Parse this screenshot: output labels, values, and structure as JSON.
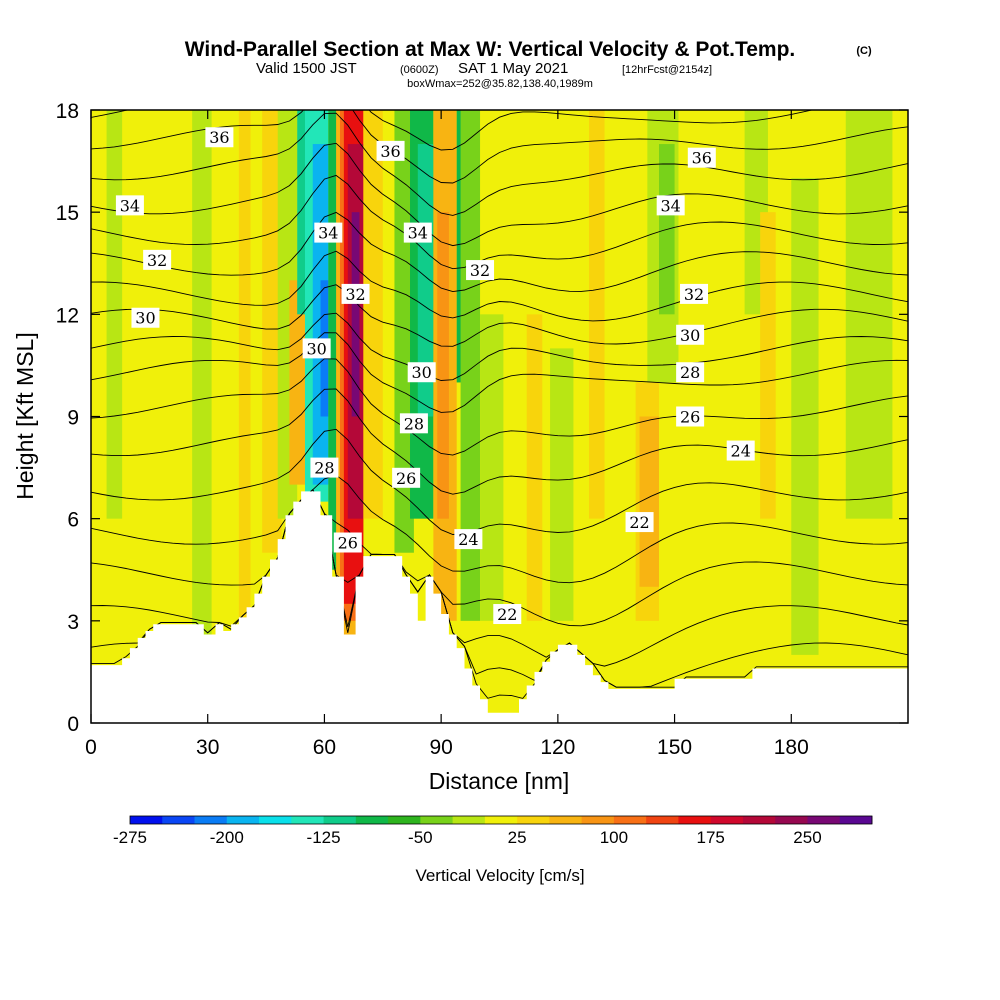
{
  "title": {
    "main": "Wind-Parallel Section at Max W: Vertical Velocity & Pot.Temp.",
    "copyright": "(C)",
    "valid_prefix": "Valid 1500 JST",
    "valid_utc": "(0600Z)",
    "valid_date": "SAT 1 May 2021",
    "forecast": "[12hrFcst@2154z]",
    "box": "boxWmax=252@35.82,138.40,1989m"
  },
  "chart_data": {
    "type": "heatmap",
    "xlabel": "Distance [nm]",
    "ylabel": "Height [Kft MSL]",
    "xlim": [
      0,
      210
    ],
    "ylim": [
      0,
      18
    ],
    "x_ticks": [
      {
        "value": 0,
        "label": "0"
      },
      {
        "value": 30,
        "label": "30"
      },
      {
        "value": 60,
        "label": "60"
      },
      {
        "value": 90,
        "label": "90"
      },
      {
        "value": 120,
        "label": "120"
      },
      {
        "value": 150,
        "label": "150"
      },
      {
        "value": 180,
        "label": "180"
      }
    ],
    "y_ticks": [
      {
        "value": 0,
        "label": "0"
      },
      {
        "value": 3,
        "label": "3"
      },
      {
        "value": 6,
        "label": "6"
      },
      {
        "value": 9,
        "label": "9"
      },
      {
        "value": 12,
        "label": "12"
      },
      {
        "value": 15,
        "label": "15"
      },
      {
        "value": 18,
        "label": "18"
      }
    ],
    "colorbar": {
      "label": "Vertical Velocity [cm/s]",
      "colors": [
        "#0010ee",
        "#0a46f5",
        "#0a7cf5",
        "#0ab4f0",
        "#0ae0ea",
        "#22e6b8",
        "#10cc8a",
        "#10b848",
        "#2eb41e",
        "#78d21a",
        "#b8e614",
        "#f0f00a",
        "#f8d40c",
        "#f8b412",
        "#f89414",
        "#f87016",
        "#f04412",
        "#e81010",
        "#d0082c",
        "#b40838",
        "#960850",
        "#780874",
        "#5a0892"
      ],
      "tick_labels": [
        "-275",
        "-200",
        "-125",
        "-50",
        "25",
        "100",
        "175",
        "250"
      ],
      "tick_bins": [
        0,
        3,
        6,
        9,
        12,
        15,
        18,
        21
      ]
    },
    "velocity_bands": [
      {
        "x": 4,
        "w": 4,
        "color": "#b8e614",
        "y0": 6,
        "y1": 18
      },
      {
        "x": 26,
        "w": 5,
        "color": "#b8e614",
        "y0": 2.5,
        "y1": 18
      },
      {
        "x": 38,
        "w": 3,
        "color": "#f8d40c",
        "y0": 3,
        "y1": 18
      },
      {
        "x": 44,
        "w": 5,
        "color": "#f8d40c",
        "y0": 5,
        "y1": 18
      },
      {
        "x": 48,
        "w": 5,
        "color": "#b8e614",
        "y0": 6,
        "y1": 18
      },
      {
        "x": 51,
        "w": 4,
        "color": "#f8b412",
        "y0": 7,
        "y1": 13
      },
      {
        "x": 53,
        "w": 6,
        "color": "#10cc8a",
        "y0": 12,
        "y1": 18
      },
      {
        "x": 55,
        "w": 6,
        "color": "#22e6b8",
        "y0": 6.5,
        "y1": 18
      },
      {
        "x": 57,
        "w": 4,
        "color": "#0ab4f0",
        "y0": 7,
        "y1": 17
      },
      {
        "x": 59,
        "w": 2,
        "color": "#0a7cf5",
        "y0": 9,
        "y1": 13
      },
      {
        "x": 61,
        "w": 4,
        "color": "#10b848",
        "y0": 4.5,
        "y1": 18
      },
      {
        "x": 63,
        "w": 7,
        "color": "#f8b412",
        "y0": 2.5,
        "y1": 18
      },
      {
        "x": 64,
        "w": 6,
        "color": "#f87016",
        "y0": 3,
        "y1": 18
      },
      {
        "x": 65,
        "w": 5,
        "color": "#e81010",
        "y0": 3.5,
        "y1": 18
      },
      {
        "x": 66,
        "w": 4,
        "color": "#b40838",
        "y0": 6,
        "y1": 17
      },
      {
        "x": 67,
        "w": 2,
        "color": "#780874",
        "y0": 9,
        "y1": 15
      },
      {
        "x": 70,
        "w": 5,
        "color": "#f8d40c",
        "y0": 6,
        "y1": 18
      },
      {
        "x": 78,
        "w": 5,
        "color": "#78d21a",
        "y0": 5,
        "y1": 18
      },
      {
        "x": 82,
        "w": 6,
        "color": "#10b848",
        "y0": 6,
        "y1": 18
      },
      {
        "x": 84,
        "w": 4,
        "color": "#10cc8a",
        "y0": 9,
        "y1": 17
      },
      {
        "x": 88,
        "w": 6,
        "color": "#f8b412",
        "y0": 3,
        "y1": 18
      },
      {
        "x": 89,
        "w": 3,
        "color": "#f89414",
        "y0": 6,
        "y1": 15
      },
      {
        "x": 94,
        "w": 5,
        "color": "#10b848",
        "y0": 10,
        "y1": 18
      },
      {
        "x": 95,
        "w": 5,
        "color": "#78d21a",
        "y0": 3,
        "y1": 18
      },
      {
        "x": 100,
        "w": 6,
        "color": "#b8e614",
        "y0": 3,
        "y1": 12
      },
      {
        "x": 112,
        "w": 4,
        "color": "#f8d40c",
        "y0": 3,
        "y1": 12
      },
      {
        "x": 118,
        "w": 6,
        "color": "#b8e614",
        "y0": 3,
        "y1": 11
      },
      {
        "x": 128,
        "w": 4,
        "color": "#f8d40c",
        "y0": 6,
        "y1": 18
      },
      {
        "x": 140,
        "w": 6,
        "color": "#f8d40c",
        "y0": 3,
        "y1": 10
      },
      {
        "x": 141,
        "w": 5,
        "color": "#f8b412",
        "y0": 4,
        "y1": 9
      },
      {
        "x": 143,
        "w": 8,
        "color": "#b8e614",
        "y0": 10,
        "y1": 18
      },
      {
        "x": 146,
        "w": 4,
        "color": "#78d21a",
        "y0": 12,
        "y1": 17
      },
      {
        "x": 168,
        "w": 6,
        "color": "#b8e614",
        "y0": 12,
        "y1": 18
      },
      {
        "x": 172,
        "w": 4,
        "color": "#f8d40c",
        "y0": 6,
        "y1": 15
      },
      {
        "x": 180,
        "w": 7,
        "color": "#b8e614",
        "y0": 2,
        "y1": 16
      },
      {
        "x": 194,
        "w": 12,
        "color": "#b8e614",
        "y0": 6,
        "y1": 18
      }
    ],
    "terrain": [
      [
        0,
        1.7
      ],
      [
        8,
        1.7
      ],
      [
        8,
        1.9
      ],
      [
        10,
        1.9
      ],
      [
        10,
        2.2
      ],
      [
        12,
        2.2
      ],
      [
        12,
        2.5
      ],
      [
        14,
        2.5
      ],
      [
        14,
        2.7
      ],
      [
        16,
        2.7
      ],
      [
        16,
        2.9
      ],
      [
        29,
        2.9
      ],
      [
        29,
        2.6
      ],
      [
        32,
        2.6
      ],
      [
        32,
        2.9
      ],
      [
        34,
        2.9
      ],
      [
        34,
        2.7
      ],
      [
        36,
        2.7
      ],
      [
        36,
        2.9
      ],
      [
        38,
        2.9
      ],
      [
        38,
        3.1
      ],
      [
        40,
        3.1
      ],
      [
        40,
        3.4
      ],
      [
        42,
        3.4
      ],
      [
        42,
        3.8
      ],
      [
        44,
        3.8
      ],
      [
        44,
        4.3
      ],
      [
        46,
        4.3
      ],
      [
        46,
        4.8
      ],
      [
        48,
        4.8
      ],
      [
        48,
        5.4
      ],
      [
        50,
        5.4
      ],
      [
        50,
        6.1
      ],
      [
        52,
        6.1
      ],
      [
        52,
        6.5
      ],
      [
        54,
        6.5
      ],
      [
        54,
        6.8
      ],
      [
        59,
        6.8
      ],
      [
        59,
        6.1
      ],
      [
        62,
        6.1
      ],
      [
        62,
        4.3
      ],
      [
        65,
        4.3
      ],
      [
        65,
        2.6
      ],
      [
        68,
        2.6
      ],
      [
        68,
        4.3
      ],
      [
        70,
        4.3
      ],
      [
        70,
        4.9
      ],
      [
        80,
        4.9
      ],
      [
        80,
        4.3
      ],
      [
        82,
        4.3
      ],
      [
        82,
        3.8
      ],
      [
        84,
        3.8
      ],
      [
        84,
        3.0
      ],
      [
        86,
        3.0
      ],
      [
        86,
        4.3
      ],
      [
        88,
        4.3
      ],
      [
        88,
        3.8
      ],
      [
        90,
        3.8
      ],
      [
        90,
        3.2
      ],
      [
        92,
        3.2
      ],
      [
        92,
        2.6
      ],
      [
        94,
        2.6
      ],
      [
        94,
        2.2
      ],
      [
        96,
        2.2
      ],
      [
        96,
        1.6
      ],
      [
        98,
        1.6
      ],
      [
        98,
        1.1
      ],
      [
        100,
        1.1
      ],
      [
        100,
        0.7
      ],
      [
        102,
        0.7
      ],
      [
        102,
        0.3
      ],
      [
        110,
        0.3
      ],
      [
        110,
        0.7
      ],
      [
        112,
        0.7
      ],
      [
        112,
        1.1
      ],
      [
        114,
        1.1
      ],
      [
        114,
        1.5
      ],
      [
        116,
        1.5
      ],
      [
        116,
        1.8
      ],
      [
        118,
        1.8
      ],
      [
        118,
        2.1
      ],
      [
        120,
        2.1
      ],
      [
        120,
        2.3
      ],
      [
        125,
        2.3
      ],
      [
        125,
        2.0
      ],
      [
        127,
        2.0
      ],
      [
        127,
        1.7
      ],
      [
        129,
        1.7
      ],
      [
        129,
        1.4
      ],
      [
        131,
        1.4
      ],
      [
        131,
        1.2
      ],
      [
        133,
        1.2
      ],
      [
        133,
        1.0
      ],
      [
        140,
        1.0
      ],
      [
        140,
        1.0
      ],
      [
        150,
        1.0
      ],
      [
        150,
        1.3
      ],
      [
        170,
        1.3
      ],
      [
        170,
        1.6
      ],
      [
        210,
        1.6
      ]
    ],
    "theta_contours": {
      "levels": [
        20,
        21,
        22,
        23,
        24,
        25,
        26,
        27,
        28,
        29,
        30,
        31,
        32,
        33,
        34,
        35,
        36,
        37
      ],
      "base_heights": [
        1.2,
        2.0,
        3.1,
        4.4,
        5.6,
        6.9,
        8.2,
        9.3,
        10.3,
        11.0,
        11.8,
        12.6,
        13.5,
        14.4,
        15.3,
        16.3,
        17.2,
        18.0
      ]
    },
    "contour_labels": [
      {
        "text": "36",
        "x": 33,
        "y": 17.2
      },
      {
        "text": "36",
        "x": 77,
        "y": 16.8
      },
      {
        "text": "36",
        "x": 157,
        "y": 16.6
      },
      {
        "text": "34",
        "x": 10,
        "y": 15.2
      },
      {
        "text": "34",
        "x": 61,
        "y": 14.4
      },
      {
        "text": "34",
        "x": 84,
        "y": 14.4
      },
      {
        "text": "34",
        "x": 149,
        "y": 15.2
      },
      {
        "text": "32",
        "x": 17,
        "y": 13.6
      },
      {
        "text": "32",
        "x": 68,
        "y": 12.6
      },
      {
        "text": "32",
        "x": 100,
        "y": 13.3
      },
      {
        "text": "32",
        "x": 155,
        "y": 12.6
      },
      {
        "text": "30",
        "x": 14,
        "y": 11.9
      },
      {
        "text": "30",
        "x": 58,
        "y": 11.0
      },
      {
        "text": "30",
        "x": 85,
        "y": 10.3
      },
      {
        "text": "30",
        "x": 154,
        "y": 11.4
      },
      {
        "text": "28",
        "x": 60,
        "y": 7.5
      },
      {
        "text": "28",
        "x": 83,
        "y": 8.8
      },
      {
        "text": "28",
        "x": 154,
        "y": 10.3
      },
      {
        "text": "26",
        "x": 81,
        "y": 7.2
      },
      {
        "text": "26",
        "x": 66,
        "y": 5.3
      },
      {
        "text": "26",
        "x": 154,
        "y": 9.0
      },
      {
        "text": "24",
        "x": 167,
        "y": 8.0
      },
      {
        "text": "24",
        "x": 97,
        "y": 5.4
      },
      {
        "text": "22",
        "x": 141,
        "y": 5.9
      },
      {
        "text": "22",
        "x": 107,
        "y": 3.2
      }
    ]
  }
}
